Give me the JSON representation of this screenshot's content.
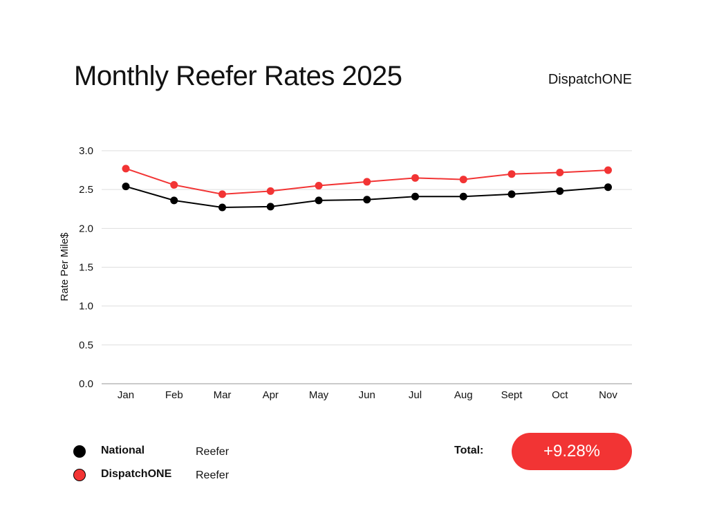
{
  "header": {
    "title": "Monthly Reefer Rates 2025",
    "brand": "DispatchONE"
  },
  "chart_data": {
    "type": "line",
    "title": "Monthly Reefer Rates 2025",
    "xlabel": "",
    "ylabel": "Rate Per Mile$",
    "ylim": [
      0,
      3.0
    ],
    "yticks": [
      "0.0",
      "0.5",
      "1.0",
      "1.5",
      "2.0",
      "2.5",
      "3.0"
    ],
    "grid": true,
    "categories": [
      "Jan",
      "Feb",
      "Mar",
      "Apr",
      "May",
      "Jun",
      "Jul",
      "Aug",
      "Sept",
      "Oct",
      "Nov"
    ],
    "series": [
      {
        "name": "National",
        "color": "#000000",
        "values": [
          2.54,
          2.36,
          2.27,
          2.28,
          2.36,
          2.37,
          2.41,
          2.41,
          2.44,
          2.48,
          2.53
        ]
      },
      {
        "name": "DispatchONE",
        "color": "#f23434",
        "values": [
          2.77,
          2.56,
          2.44,
          2.48,
          2.55,
          2.6,
          2.65,
          2.63,
          2.7,
          2.72,
          2.75
        ]
      }
    ]
  },
  "legend": [
    {
      "name": "National",
      "type": "Reefer",
      "color": "#000000"
    },
    {
      "name": "DispatchONE",
      "type": "Reefer",
      "color": "#f23434"
    }
  ],
  "total": {
    "label": "Total:",
    "value": "+9.28%",
    "color": "#f23434"
  }
}
